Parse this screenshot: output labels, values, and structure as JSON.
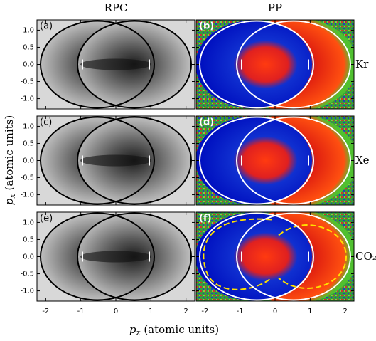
{
  "figure": {
    "column_titles": [
      "RPC",
      "PP"
    ],
    "row_labels": [
      "Kr",
      "Xe",
      "CO₂"
    ],
    "xlabel": [
      "p",
      "z",
      "(atomic units)"
    ],
    "ylabel": [
      "p",
      "x",
      "(atomic units)"
    ]
  },
  "chart_data": [
    {
      "type": "image",
      "label": "(a)",
      "xlim": [
        -2.25,
        2.25
      ],
      "ylim": [
        -1.3,
        1.3
      ],
      "xticks": [
        -2,
        -1,
        0,
        1,
        2
      ],
      "yticks": [
        {
          "value": 1,
          "label": "1.0"
        },
        {
          "value": 0.5,
          "label": "0.5"
        },
        {
          "value": 0,
          "label": "0.0"
        },
        {
          "value": -0.5,
          "label": "-0.5"
        },
        {
          "value": -1,
          "label": "-1.0"
        }
      ]
    },
    {
      "type": "image",
      "label": "(b)",
      "xlim": [
        -2.25,
        2.25
      ],
      "ylim": [
        -1.3,
        1.3
      ],
      "xticks": [
        -2,
        -1,
        0,
        1,
        2
      ],
      "yticks": [
        {
          "value": 1,
          "label": "1.0"
        },
        {
          "value": 0.5,
          "label": "0.5"
        },
        {
          "value": 0,
          "label": "0.0"
        },
        {
          "value": -0.5,
          "label": "-0.5"
        },
        {
          "value": -1,
          "label": "-1.0"
        }
      ]
    },
    {
      "type": "image",
      "label": "(c)",
      "xlim": [
        -2.25,
        2.25
      ],
      "ylim": [
        -1.3,
        1.3
      ],
      "xticks": [
        -2,
        -1,
        0,
        1,
        2
      ],
      "yticks": [
        {
          "value": 1,
          "label": "1.0"
        },
        {
          "value": 0.5,
          "label": "0.5"
        },
        {
          "value": 0,
          "label": "0.0"
        },
        {
          "value": -0.5,
          "label": "-0.5"
        },
        {
          "value": -1,
          "label": "-1.0"
        }
      ]
    },
    {
      "type": "image",
      "label": "(d)",
      "xlim": [
        -2.25,
        2.25
      ],
      "ylim": [
        -1.3,
        1.3
      ],
      "xticks": [
        -2,
        -1,
        0,
        1,
        2
      ],
      "yticks": [
        {
          "value": 1,
          "label": "1.0"
        },
        {
          "value": 0.5,
          "label": "0.5"
        },
        {
          "value": 0,
          "label": "0.0"
        },
        {
          "value": -0.5,
          "label": "-0.5"
        },
        {
          "value": -1,
          "label": "-1.0"
        }
      ]
    },
    {
      "type": "image",
      "label": "(e)",
      "xlim": [
        -2.25,
        2.25
      ],
      "ylim": [
        -1.3,
        1.3
      ],
      "xticks": [
        -2,
        -1,
        0,
        1,
        2
      ],
      "yticks": [
        {
          "value": 1,
          "label": "1.0"
        },
        {
          "value": 0.5,
          "label": "0.5"
        },
        {
          "value": 0,
          "label": "0.0"
        },
        {
          "value": -0.5,
          "label": "-0.5"
        },
        {
          "value": -1,
          "label": "-1.0"
        }
      ]
    },
    {
      "type": "image",
      "label": "(f)",
      "xlim": [
        -2.25,
        2.25
      ],
      "ylim": [
        -1.3,
        1.3
      ],
      "xticks": [
        -2,
        -1,
        0,
        1,
        2
      ],
      "yticks": [
        {
          "value": 1,
          "label": "1.0"
        },
        {
          "value": 0.5,
          "label": "0.5"
        },
        {
          "value": 0,
          "label": "0.0"
        },
        {
          "value": -0.5,
          "label": "-0.5"
        },
        {
          "value": -1,
          "label": "-1.0"
        }
      ]
    }
  ]
}
